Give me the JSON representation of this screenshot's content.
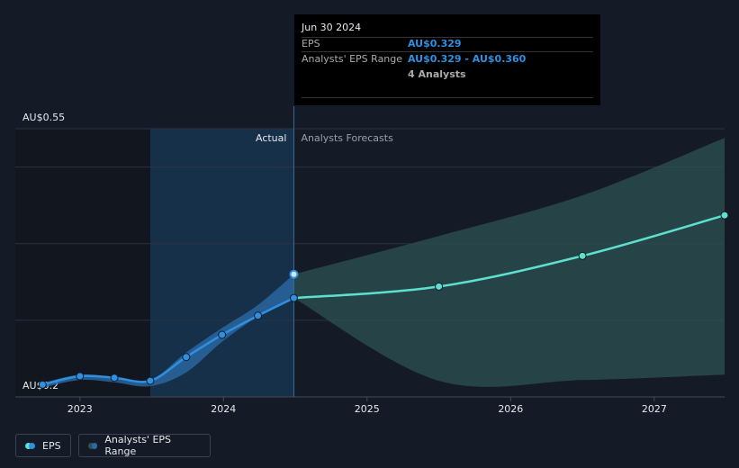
{
  "chart_data": {
    "type": "line",
    "x": [
      2022.74,
      2023.0,
      2023.24,
      2023.49,
      2023.74,
      2023.99,
      2024.24,
      2024.49,
      2025.5,
      2026.5,
      2027.49
    ],
    "series": [
      {
        "name": "EPS",
        "color": "#2f8fe0",
        "forecast_color": "#5ee0cf",
        "values": [
          0.216,
          0.227,
          0.225,
          0.221,
          0.252,
          0.281,
          0.306,
          0.329,
          0.344,
          0.384,
          0.437
        ]
      },
      {
        "name": "Analysts' EPS Range",
        "color": "#2a6aa5",
        "forecast_color": "#2c5253",
        "low": [
          0.212,
          0.222,
          0.219,
          0.214,
          0.232,
          0.272,
          0.305,
          0.329,
          0.221,
          0.222,
          0.229
        ],
        "high": [
          0.218,
          0.229,
          0.226,
          0.222,
          0.258,
          0.29,
          0.32,
          0.36,
          0.41,
          0.463,
          0.538
        ]
      }
    ],
    "forecast_start": 2024.49,
    "actual_label": "Actual",
    "forecast_label": "Analysts Forecasts",
    "xlim": [
      2022.55,
      2027.49
    ],
    "xticks": [
      2023,
      2024,
      2025,
      2026,
      2027
    ],
    "ylim": [
      0.2,
      0.55
    ],
    "yticks": [
      {
        "value": 0.55,
        "label": "AU$0.55"
      },
      {
        "value": 0.5,
        "label": null
      },
      {
        "value": 0.4,
        "label": null
      },
      {
        "value": 0.3,
        "label": null
      },
      {
        "value": 0.2,
        "label": "AU$0.2"
      }
    ],
    "grid": true,
    "tooltip": {
      "date": "Jun 30 2024",
      "eps_label": "EPS",
      "eps_value": "AU$0.329",
      "range_label": "Analysts' EPS Range",
      "range_value": "AU$0.329 - AU$0.360",
      "analysts": "4 Analysts"
    }
  }
}
